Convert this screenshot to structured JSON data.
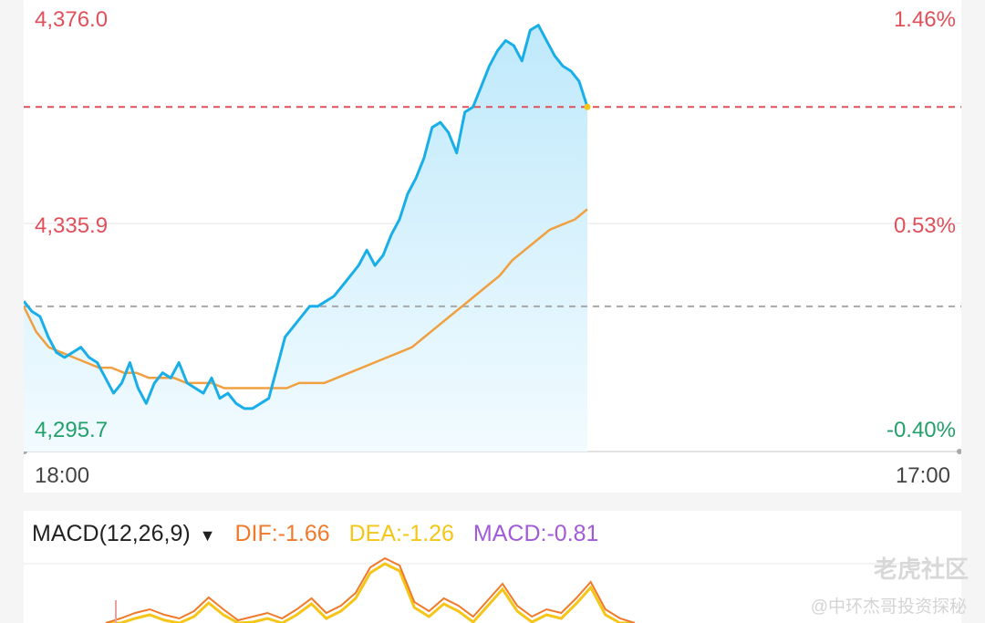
{
  "price_axis": {
    "top": "4,376.0",
    "mid": "4,335.9",
    "bottom": "4,295.7"
  },
  "pct_axis": {
    "top": "1.46%",
    "mid": "0.53%",
    "bottom": "-0.40%"
  },
  "time_axis": {
    "start": "18:00",
    "end": "17:00"
  },
  "macd": {
    "name": "MACD(12,26,9)",
    "dropdown_icon": "triangle-down-icon",
    "dif": "DIF:-1.66",
    "dea": "DEA:-1.26",
    "macd": "MACD:-0.81",
    "colors": {
      "dif": "#f07a2a",
      "dea": "#f5c518",
      "macd": "#a25ad8"
    }
  },
  "watermark": {
    "brand": "老虎社区",
    "author": "@中环杰哥投资探秘"
  },
  "chart_data": {
    "type": "line",
    "ylim": [
      4295.7,
      4376.0
    ],
    "reference_price": 4320.0,
    "last_price": 4359.0,
    "x_range_minutes": [
      0,
      1380
    ],
    "series": [
      {
        "values": [
          4321,
          4319,
          4318,
          4314,
          4311,
          4310,
          4311,
          4312,
          4310,
          4309,
          4306,
          4303,
          4305,
          4309,
          4304,
          4301,
          4305,
          4307,
          4306,
          4309,
          4305,
          4304,
          4303,
          4306,
          4302,
          4303,
          4301,
          4300,
          4300,
          4301,
          4302,
          4308,
          4314,
          4316,
          4318,
          4320,
          4320,
          4321,
          4322,
          4324,
          4326,
          4328,
          4331,
          4328,
          4330,
          4334,
          4337,
          4342,
          4345,
          4349,
          4355,
          4356,
          4354,
          4350,
          4358,
          4359,
          4363,
          4367,
          4370,
          4372,
          4371,
          4368,
          4374,
          4375,
          4372,
          4369,
          4367,
          4366,
          4364,
          4359
        ]
      },
      {
        "values": [
          4320,
          4315,
          4312,
          4311,
          4310,
          4309,
          4308,
          4308,
          4307,
          4307,
          4306,
          4306,
          4306,
          4305,
          4305,
          4305,
          4304,
          4304,
          4304,
          4304,
          4304,
          4304,
          4305,
          4305,
          4305,
          4306,
          4307,
          4308,
          4309,
          4310,
          4311,
          4312,
          4314,
          4316,
          4318,
          4320,
          4322,
          4324,
          4326,
          4329,
          4331,
          4333,
          4335,
          4336,
          4337,
          4339
        ]
      }
    ]
  }
}
